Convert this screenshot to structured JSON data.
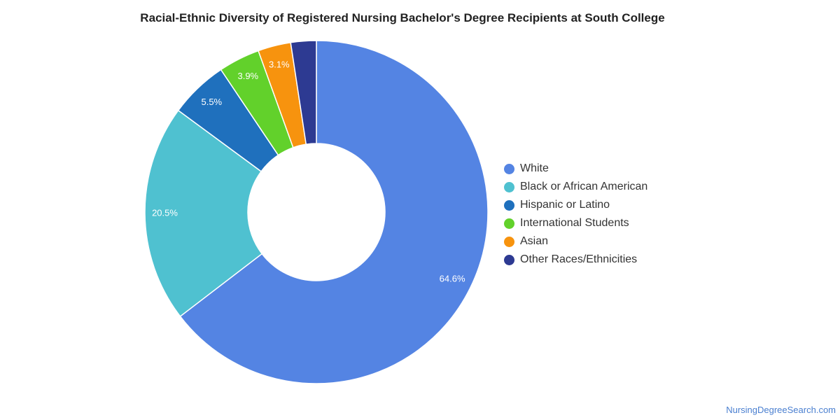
{
  "chart_data": {
    "type": "pie",
    "title": "Racial-Ethnic Diversity of Registered Nursing Bachelor's Degree Recipients at South College",
    "categories": [
      "White",
      "Black or African American",
      "Hispanic or Latino",
      "International Students",
      "Asian",
      "Other Races/Ethnicities"
    ],
    "values": [
      64.6,
      20.5,
      5.5,
      3.9,
      3.1,
      2.4
    ],
    "labels": [
      "64.6%",
      "20.5%",
      "5.5%",
      "3.9%",
      "3.1%",
      ""
    ],
    "colors": [
      "#5484e3",
      "#4fc1d0",
      "#1f70bd",
      "#62d12b",
      "#f7930e",
      "#2d3a92"
    ],
    "hole": "donut",
    "legend_position": "right"
  },
  "footer": {
    "source": "NursingDegreeSearch.com"
  }
}
